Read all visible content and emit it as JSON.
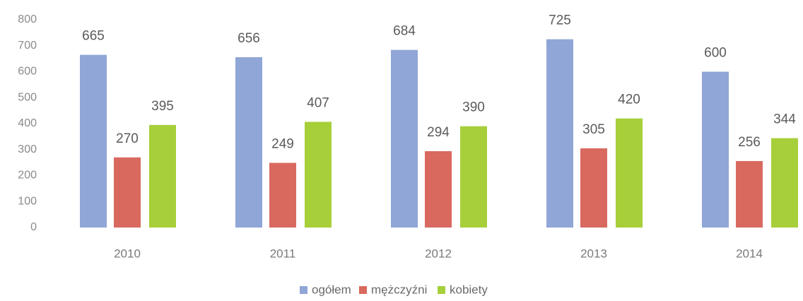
{
  "chart_data": {
    "type": "bar",
    "categories": [
      "2010",
      "2011",
      "2012",
      "2013",
      "2014"
    ],
    "series": [
      {
        "name": "ogółem",
        "color": "#8fa6d6",
        "values": [
          665,
          656,
          684,
          725,
          600
        ]
      },
      {
        "name": "mężczyźni",
        "color": "#d9695f",
        "values": [
          270,
          249,
          294,
          305,
          256
        ]
      },
      {
        "name": "kobiety",
        "color": "#a6cf3a",
        "values": [
          395,
          407,
          390,
          420,
          344
        ]
      }
    ],
    "ylim": [
      0,
      800
    ],
    "yticks": [
      0,
      100,
      200,
      300,
      400,
      500,
      600,
      700,
      800
    ],
    "legend": "bottom"
  }
}
